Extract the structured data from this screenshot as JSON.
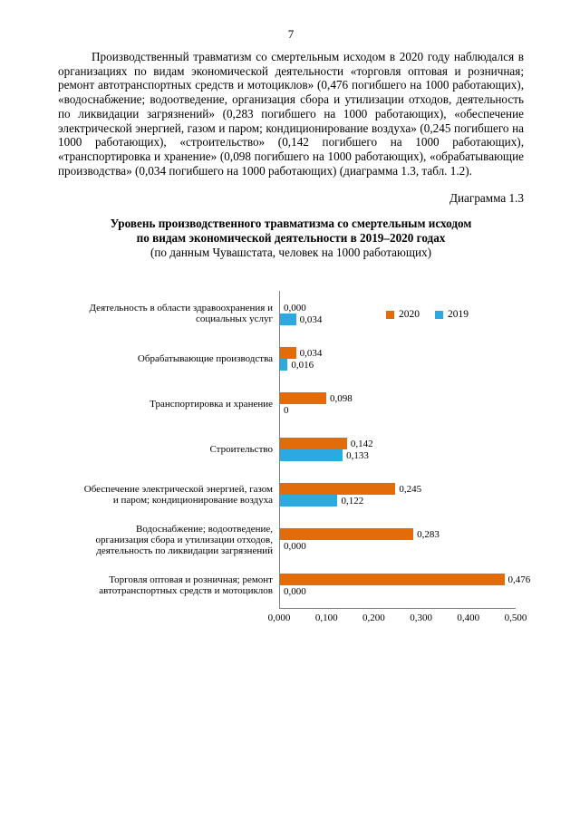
{
  "page": {
    "number": "7",
    "paragraph": "Производственный травматизм со смертельным исходом в 2020 году наблюдался в организациях по видам экономической деятельности «торговля оптовая и розничная; ремонт автотранспортных средств и мотоциклов» (0,476 погибшего на 1000 работающих), «водоснабжение; водоотведение, организация сбора и утилизации отходов, деятельность по ликвидации загрязнений» (0,283 погибшего на 1000 работающих), «обеспечение электрической энергией, газом и паром; кондиционирование воздуха» (0,245 погибшего на 1000 работающих), «строительство» (0,142 погибшего на 1000 работающих), «транспортировка и хранение» (0,098 погибшего на 1000 работающих), «обрабатывающие производства» (0,034 погибшего на 1000 работающих) (диаграмма 1.3, табл. 1.2).",
    "diagram_caption": "Диаграмма 1.3"
  },
  "chart_data": {
    "type": "bar",
    "orientation": "horizontal",
    "title_lines": [
      "Уровень производственного травматизма со смертельным исходом",
      "по видам экономической деятельности в 2019–2020 годах"
    ],
    "subtitle": "(по данным Чувашстата, человек на 1000 работающих)",
    "categories": [
      "Деятельность в области здравоохранения и социальных услуг",
      "Обрабатывающие производства",
      "Транспортировка и хранение",
      "Строительство",
      "Обеспечение электрической энергией, газом и паром; кондиционирование воздуха",
      "Водоснабжение; водоотведение, организация сбора и утилизации отходов, деятельность по ликвидации загрязнений",
      "Торговля оптовая и розничная; ремонт автотранспортных средств и мотоциклов"
    ],
    "series": [
      {
        "name": "2020",
        "color": "#E36C0A",
        "values": [
          0.0,
          0.034,
          0.098,
          0.142,
          0.245,
          0.283,
          0.476
        ],
        "labels": [
          "0,000",
          "0,034",
          "0,098",
          "0,142",
          "0,245",
          "0,283",
          "0,476"
        ]
      },
      {
        "name": "2019",
        "color": "#2BAAE2",
        "values": [
          0.034,
          0.016,
          0.0,
          0.133,
          0.122,
          0.0,
          0.0
        ],
        "labels": [
          "0,034",
          "0,016",
          "0",
          "0,133",
          "0,122",
          "0,000",
          "0,000"
        ]
      }
    ],
    "x_ticks": [
      "0,000",
      "0,100",
      "0,200",
      "0,300",
      "0,400",
      "0,500"
    ],
    "xlim": [
      0,
      0.5
    ],
    "legend_position": "top-right-inside",
    "grid": false
  }
}
